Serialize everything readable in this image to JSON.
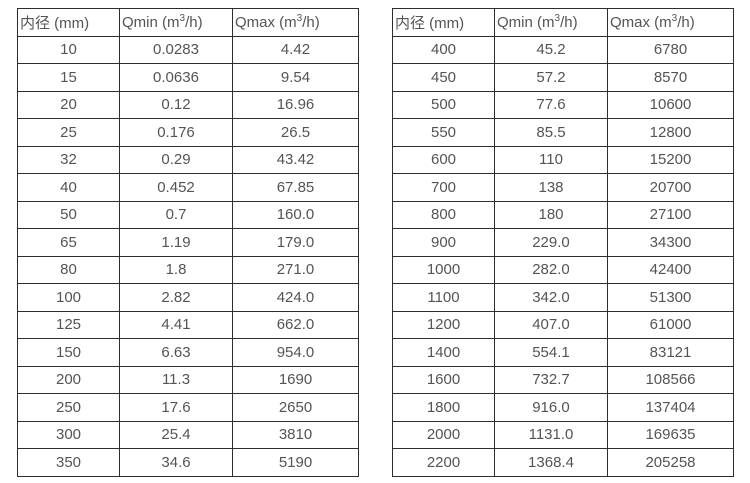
{
  "colors": {
    "background": "#ffffff",
    "table_border": "#2d2d2d",
    "text": "#545454"
  },
  "tables": [
    {
      "name": "flow-spec-table-small-diameters",
      "headers": [
        "内径 (mm)",
        "Qmin (m³/h)",
        "Qmax (m³/h)"
      ],
      "rows": [
        [
          "10",
          "0.0283",
          "4.42"
        ],
        [
          "15",
          "0.0636",
          "9.54"
        ],
        [
          "20",
          "0.12",
          "16.96"
        ],
        [
          "25",
          "0.176",
          "26.5"
        ],
        [
          "32",
          "0.29",
          "43.42"
        ],
        [
          "40",
          "0.452",
          "67.85"
        ],
        [
          "50",
          "0.7",
          "160.0"
        ],
        [
          "65",
          "1.19",
          "179.0"
        ],
        [
          "80",
          "1.8",
          "271.0"
        ],
        [
          "100",
          "2.82",
          "424.0"
        ],
        [
          "125",
          "4.41",
          "662.0"
        ],
        [
          "150",
          "6.63",
          "954.0"
        ],
        [
          "200",
          "11.3",
          "1690"
        ],
        [
          "250",
          "17.6",
          "2650"
        ],
        [
          "300",
          "25.4",
          "3810"
        ],
        [
          "350",
          "34.6",
          "5190"
        ]
      ]
    },
    {
      "name": "flow-spec-table-large-diameters",
      "headers": [
        "内径 (mm)",
        "Qmin (m³/h)",
        "Qmax (m³/h)"
      ],
      "rows": [
        [
          "400",
          "45.2",
          "6780"
        ],
        [
          "450",
          "57.2",
          "8570"
        ],
        [
          "500",
          "77.6",
          "10600"
        ],
        [
          "550",
          "85.5",
          "12800"
        ],
        [
          "600",
          "110",
          "15200"
        ],
        [
          "700",
          "138",
          "20700"
        ],
        [
          "800",
          "180",
          "27100"
        ],
        [
          "900",
          "229.0",
          "34300"
        ],
        [
          "1000",
          "282.0",
          "42400"
        ],
        [
          "1100",
          "342.0",
          "51300"
        ],
        [
          "1200",
          "407.0",
          "61000"
        ],
        [
          "1400",
          "554.1",
          "83121"
        ],
        [
          "1600",
          "732.7",
          "108566"
        ],
        [
          "1800",
          "916.0",
          "137404"
        ],
        [
          "2000",
          "1131.0",
          "169635"
        ],
        [
          "2200",
          "1368.4",
          "205258"
        ]
      ]
    }
  ]
}
